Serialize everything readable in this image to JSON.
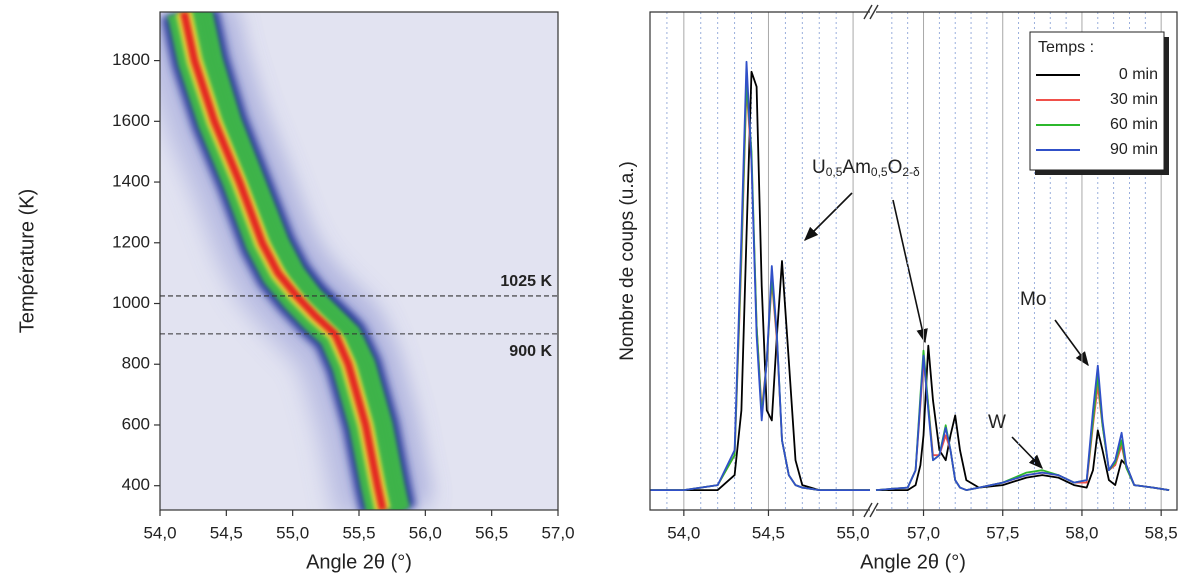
{
  "chart_data": [
    {
      "type": "heatmap",
      "x_label": "Angle 2θ (°)",
      "y_label": "Température (K)",
      "xlim": [
        54,
        57
      ],
      "ylim": [
        320,
        1960
      ],
      "xticks": [
        {
          "value": 54,
          "label": "54,0"
        },
        {
          "value": 54.5,
          "label": "54,5"
        },
        {
          "value": 55,
          "label": "55,0"
        },
        {
          "value": 55.5,
          "label": "55,5"
        },
        {
          "value": 56,
          "label": "56,0"
        },
        {
          "value": 56.5,
          "label": "56,5"
        },
        {
          "value": 57,
          "label": "57,0"
        }
      ],
      "yticks": [
        400,
        600,
        800,
        1000,
        1200,
        1400,
        1600,
        1800
      ],
      "y": [
        1960,
        1800,
        1600,
        1400,
        1200,
        1100,
        1025,
        960,
        900,
        800,
        600,
        400,
        320
      ],
      "series": [
        {
          "color": "#e42020",
          "values": [
            54.18,
            54.26,
            54.41,
            54.6,
            54.77,
            54.89,
            55.03,
            55.17,
            55.32,
            55.42,
            55.55,
            55.64,
            55.68
          ]
        },
        {
          "color": "#3db34a",
          "values": [
            54.32,
            54.4,
            54.54,
            54.72,
            54.9,
            55.02,
            55.15,
            55.3,
            55.44,
            55.55,
            55.68,
            55.77,
            55.81
          ]
        }
      ],
      "annotations": [
        {
          "value": 1025,
          "label": "1025 K"
        },
        {
          "value": 900,
          "label": "900 K"
        }
      ]
    },
    {
      "type": "line",
      "x_label": "Angle 2θ (°)",
      "y_label": "Nombre de coups (u.a.)",
      "xlim_segments": [
        [
          53.8,
          55.1
        ],
        [
          56.7,
          58.6
        ]
      ],
      "ylim": [
        0,
        100
      ],
      "xticks": [
        {
          "value": 54,
          "label": "54,0"
        },
        {
          "value": 54.5,
          "label": "54,5"
        },
        {
          "value": 55,
          "label": "55,0"
        },
        {
          "value": 57,
          "label": "57,0"
        },
        {
          "value": 57.5,
          "label": "57,5"
        },
        {
          "value": 58,
          "label": "58,0"
        },
        {
          "value": 58.5,
          "label": "58,5"
        }
      ],
      "minor_xticks": [
        53.9,
        54.1,
        54.2,
        54.3,
        54.4,
        54.6,
        54.7,
        54.8,
        54.9,
        56.8,
        56.9,
        57.1,
        57.2,
        57.3,
        57.4,
        57.6,
        57.7,
        57.8,
        57.9,
        58.1,
        58.2,
        58.3,
        58.4
      ],
      "grid": true,
      "legend_title": "Temps :",
      "legend_position": "upper right",
      "x": [
        53.8,
        54.0,
        54.2,
        54.3,
        54.34,
        54.37,
        54.4,
        54.43,
        54.46,
        54.49,
        54.52,
        54.55,
        54.58,
        54.62,
        54.66,
        54.7,
        54.8,
        55.0,
        55.1,
        56.0,
        56.7,
        56.9,
        56.95,
        56.98,
        57.0,
        57.03,
        57.06,
        57.1,
        57.14,
        57.17,
        57.2,
        57.23,
        57.27,
        57.35,
        57.5,
        57.65,
        57.75,
        57.85,
        57.95,
        58.03,
        58.07,
        58.1,
        58.13,
        58.17,
        58.21,
        58.25,
        58.28,
        58.33,
        58.45,
        58.55
      ],
      "series": [
        {
          "name": "0 min",
          "color": "#000000",
          "values": [
            4,
            4,
            4,
            7,
            20,
            55,
            88,
            85,
            45,
            20,
            18,
            35,
            50,
            30,
            10,
            5,
            4,
            4,
            4,
            null,
            4,
            4,
            5,
            9,
            15,
            33,
            22,
            12,
            10,
            15,
            19,
            12,
            6,
            4.5,
            5,
            6.5,
            7,
            6.5,
            5,
            4.5,
            8,
            16,
            12,
            6,
            5,
            10,
            9,
            5,
            4.5,
            4
          ]
        },
        {
          "name": "30 min",
          "color": "#f0504a",
          "values": [
            4,
            4,
            5,
            11,
            50,
            85,
            70,
            37,
            20,
            30,
            46,
            34,
            14,
            7,
            5,
            4.5,
            4,
            4,
            4,
            null,
            4,
            4.5,
            8,
            21,
            30,
            21,
            11,
            11,
            15,
            12,
            6,
            4.5,
            4,
            4.5,
            5.5,
            7,
            7.5,
            7,
            5.5,
            5.5,
            17,
            25,
            17,
            8,
            9,
            13,
            8.5,
            5,
            4.5,
            4
          ]
        },
        {
          "name": "60 min",
          "color": "#2cb82c",
          "values": [
            4,
            4,
            5,
            11,
            52,
            86,
            72,
            37,
            19,
            30,
            47,
            35,
            14,
            7,
            5,
            4.5,
            4,
            4,
            4,
            null,
            4,
            4.5,
            8,
            23,
            32,
            21,
            10,
            11,
            17,
            12,
            6,
            4.5,
            4,
            4.5,
            5.5,
            7.5,
            8,
            7,
            5.5,
            6,
            18,
            27,
            17,
            8,
            9.5,
            14,
            8.5,
            5,
            4.5,
            4
          ]
        },
        {
          "name": "90 min",
          "color": "#3050c8",
          "values": [
            4,
            4,
            5,
            12,
            55,
            90,
            70,
            35,
            18,
            30,
            49,
            35,
            14,
            7,
            5,
            4.5,
            4,
            4,
            4,
            null,
            4,
            4.5,
            8,
            22,
            31,
            20,
            10,
            11,
            16.5,
            12,
            6,
            4.5,
            4,
            4.5,
            5.5,
            7,
            7.5,
            7,
            5.5,
            6,
            20,
            29,
            18,
            8,
            10,
            15.5,
            9,
            5,
            4.5,
            4
          ]
        }
      ],
      "annotations": {
        "phase": [
          "U",
          "0,5",
          "Am",
          "0,5",
          "O",
          "2-δ"
        ],
        "w": "W",
        "mo": "Mo"
      }
    }
  ]
}
